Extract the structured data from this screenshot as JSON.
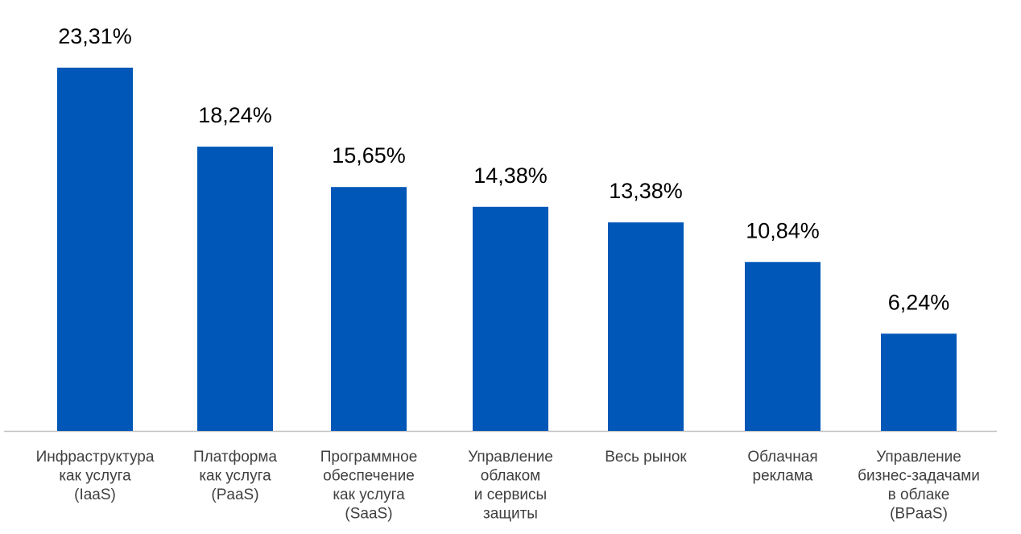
{
  "chart_data": {
    "type": "bar",
    "categories": [
      [
        "Инфраструктура",
        "как услуга",
        "(IaaS)"
      ],
      [
        "Платформа",
        "как услуга",
        "(PaaS)"
      ],
      [
        "Программное",
        "обеспечение",
        "как услуга",
        "(SaaS)"
      ],
      [
        "Управление",
        "облаком",
        "и сервисы",
        "защиты"
      ],
      [
        "Весь рынок"
      ],
      [
        "Облачная",
        "реклама"
      ],
      [
        "Управление",
        "бизнес-задачами",
        "в облаке",
        "(BPaaS)"
      ]
    ],
    "values": [
      23.31,
      18.24,
      15.65,
      14.38,
      13.38,
      10.84,
      6.24
    ],
    "data_labels": [
      "23,31%",
      "18,24%",
      "15,65%",
      "14,38%",
      "13,38%",
      "10,84%",
      "6,24%"
    ],
    "title": "",
    "xlabel": "",
    "ylabel": "",
    "ylim": [
      0,
      23.31
    ],
    "grid": false,
    "legend": "none",
    "bar_color": "#0057B8",
    "axis_color": "#BFBFBF"
  }
}
